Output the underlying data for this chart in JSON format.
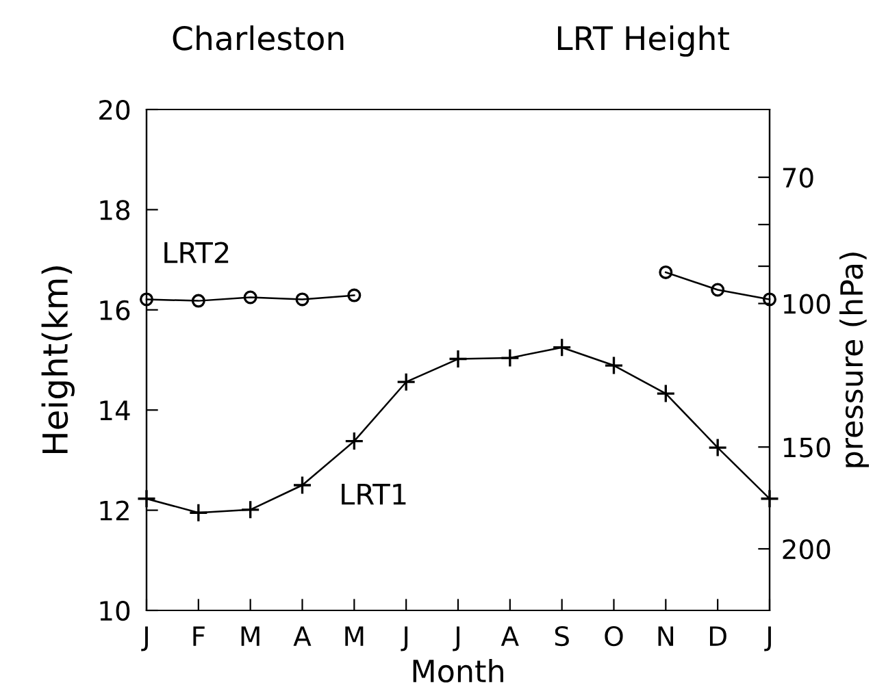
{
  "chart_data": {
    "type": "line",
    "title": "Charleston",
    "subtitle": "LRT Height",
    "xlabel": "Month",
    "ylabel": "Height(km)",
    "y2label": "pressure (hPa)",
    "categories": [
      "J",
      "F",
      "M",
      "A",
      "M",
      "J",
      "J",
      "A",
      "S",
      "O",
      "N",
      "D",
      "J"
    ],
    "series": [
      {
        "name": "LRT2",
        "color": "#000000",
        "marker": "circle",
        "values": [
          16.21,
          16.18,
          16.25,
          16.21,
          16.29,
          null,
          null,
          null,
          null,
          null,
          16.75,
          16.4,
          16.21
        ]
      },
      {
        "name": "LRT1",
        "color": "#000000",
        "marker": "cross",
        "values": [
          12.23,
          11.95,
          12.01,
          12.5,
          13.38,
          14.56,
          15.02,
          15.04,
          15.25,
          14.89,
          14.33,
          13.25,
          12.23
        ]
      }
    ],
    "ylim": [
      10,
      20
    ],
    "yticks": [
      10,
      12,
      14,
      16,
      18,
      20
    ],
    "log": "y2",
    "y2lim": [
      238,
      57.8
    ],
    "y2ticks": [
      70,
      {
        "value": 80,
        "label": null
      },
      {
        "value": 90,
        "label": null
      },
      100,
      150,
      200
    ],
    "grid": false,
    "legend": false
  }
}
